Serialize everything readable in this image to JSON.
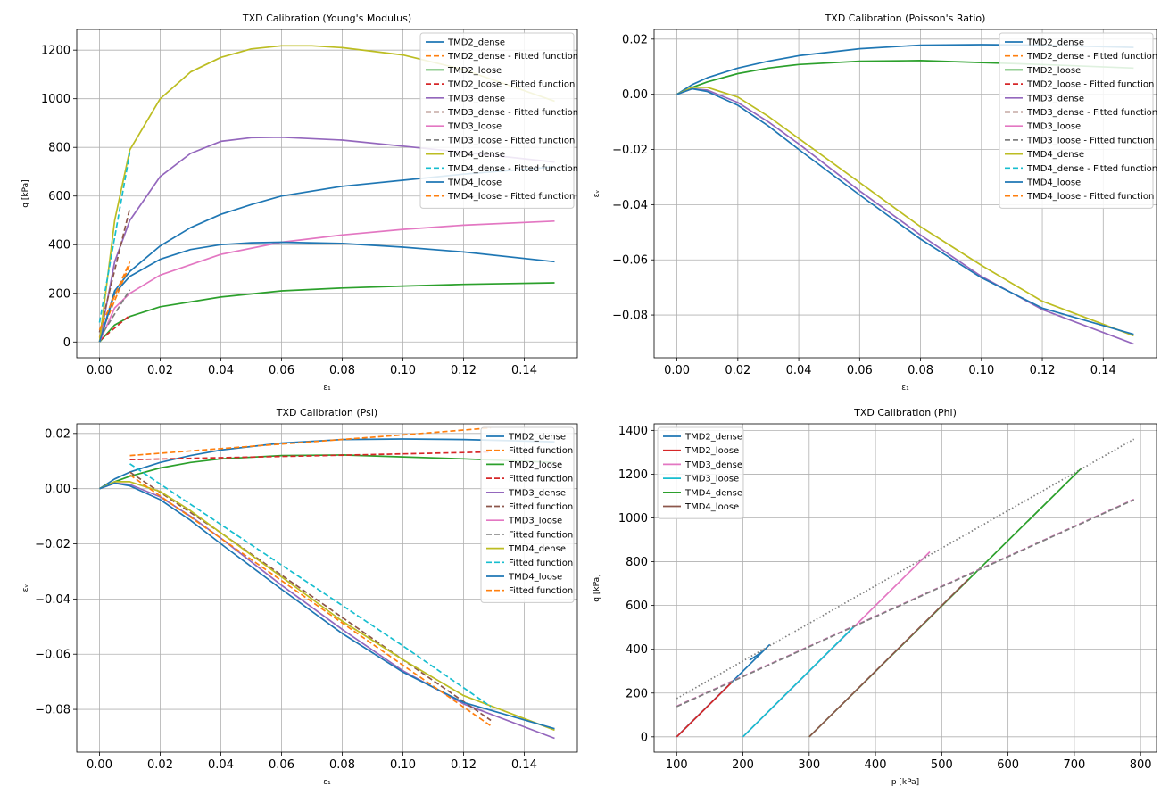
{
  "chart_data": [
    {
      "type": "line",
      "title": "TXD Calibration (Young's Modulus)",
      "xlabel": "ε₁",
      "ylabel": "q [kPa]",
      "xlim": [
        -0.0075,
        0.1575
      ],
      "ylim": [
        -65,
        1285
      ],
      "xticks": [
        0.0,
        0.02,
        0.04,
        0.06,
        0.08,
        0.1,
        0.12,
        0.14
      ],
      "xtick_labels": [
        "0.00",
        "0.02",
        "0.04",
        "0.06",
        "0.08",
        "0.10",
        "0.12",
        "0.14"
      ],
      "yticks": [
        0,
        200,
        400,
        600,
        800,
        1000,
        1200
      ],
      "ytick_labels": [
        "0",
        "200",
        "400",
        "600",
        "800",
        "1000",
        "1200"
      ],
      "grid": true,
      "legend_position": "top-right",
      "series": [
        {
          "name": "TMD2_dense",
          "color": "#1f77b4",
          "dash": "solid",
          "x": [
            0,
            0.005,
            0.01,
            0.02,
            0.03,
            0.04,
            0.05,
            0.06,
            0.08,
            0.1,
            0.12,
            0.15
          ],
          "y": [
            0,
            210,
            290,
            395,
            470,
            525,
            565,
            600,
            640,
            665,
            690,
            720
          ]
        },
        {
          "name": "TMD2_dense - Fitted function",
          "color": "#ff7f0e",
          "dash": "dashed",
          "x": [
            0,
            0.01
          ],
          "y": [
            20,
            320
          ]
        },
        {
          "name": "TMD2_loose",
          "color": "#2ca02c",
          "dash": "solid",
          "x": [
            0,
            0.005,
            0.01,
            0.02,
            0.04,
            0.06,
            0.08,
            0.1,
            0.12,
            0.15
          ],
          "y": [
            0,
            70,
            105,
            145,
            185,
            210,
            222,
            230,
            237,
            243
          ]
        },
        {
          "name": "TMD2_loose - Fitted function",
          "color": "#d62728",
          "dash": "dashed",
          "x": [
            0,
            0.01
          ],
          "y": [
            5,
            110
          ]
        },
        {
          "name": "TMD3_dense",
          "color": "#9467bd",
          "dash": "solid",
          "x": [
            0,
            0.005,
            0.01,
            0.02,
            0.03,
            0.04,
            0.05,
            0.06,
            0.08,
            0.1,
            0.12,
            0.15
          ],
          "y": [
            0,
            330,
            500,
            680,
            775,
            825,
            840,
            842,
            830,
            805,
            780,
            740
          ]
        },
        {
          "name": "TMD3_dense - Fitted function",
          "color": "#8c564b",
          "dash": "dashed",
          "x": [
            0,
            0.01
          ],
          "y": [
            40,
            550
          ]
        },
        {
          "name": "TMD3_loose",
          "color": "#e377c2",
          "dash": "solid",
          "x": [
            0,
            0.005,
            0.01,
            0.02,
            0.04,
            0.06,
            0.08,
            0.1,
            0.12,
            0.15
          ],
          "y": [
            0,
            140,
            200,
            275,
            360,
            410,
            440,
            463,
            480,
            497
          ]
        },
        {
          "name": "TMD3_loose - Fitted function",
          "color": "#7f7f7f",
          "dash": "dashed",
          "x": [
            0,
            0.01
          ],
          "y": [
            15,
            215
          ]
        },
        {
          "name": "TMD4_dense",
          "color": "#bcbd22",
          "dash": "solid",
          "x": [
            0,
            0.005,
            0.01,
            0.02,
            0.03,
            0.04,
            0.05,
            0.06,
            0.07,
            0.08,
            0.1,
            0.12,
            0.15
          ],
          "y": [
            0,
            500,
            790,
            1000,
            1110,
            1170,
            1205,
            1218,
            1218,
            1210,
            1180,
            1120,
            990
          ]
        },
        {
          "name": "TMD4_dense - Fitted function",
          "color": "#17becf",
          "dash": "dashed",
          "x": [
            0,
            0.01
          ],
          "y": [
            80,
            780
          ]
        },
        {
          "name": "TMD4_loose",
          "color": "#1f77b4",
          "dash": "solid",
          "x": [
            0,
            0.005,
            0.01,
            0.02,
            0.03,
            0.04,
            0.05,
            0.06,
            0.08,
            0.1,
            0.12,
            0.15
          ],
          "y": [
            0,
            200,
            270,
            340,
            380,
            400,
            408,
            410,
            405,
            390,
            370,
            330
          ]
        },
        {
          "name": "TMD4_loose - Fitted function",
          "color": "#ff7f0e",
          "dash": "dashed",
          "x": [
            0,
            0.01
          ],
          "y": [
            50,
            330
          ]
        }
      ]
    },
    {
      "type": "line",
      "title": "TXD Calibration (Poisson's Ratio)",
      "xlabel": "ε₁",
      "ylabel": "εᵥ",
      "xlim": [
        -0.0075,
        0.1575
      ],
      "ylim": [
        -0.0955,
        0.0235
      ],
      "xticks": [
        0.0,
        0.02,
        0.04,
        0.06,
        0.08,
        0.1,
        0.12,
        0.14
      ],
      "xtick_labels": [
        "0.00",
        "0.02",
        "0.04",
        "0.06",
        "0.08",
        "0.10",
        "0.12",
        "0.14"
      ],
      "yticks": [
        0.02,
        0.0,
        -0.02,
        -0.04,
        -0.06,
        -0.08
      ],
      "ytick_labels": [
        "0.02",
        "0.00",
        "−0.02",
        "−0.04",
        "−0.06",
        "−0.08"
      ],
      "grid": true,
      "legend_position": "top-right",
      "series": [
        {
          "name": "TMD2_dense",
          "color": "#1f77b4",
          "dash": "solid",
          "x": [
            0,
            0.005,
            0.01,
            0.02,
            0.03,
            0.04,
            0.06,
            0.08,
            0.1,
            0.12,
            0.15
          ],
          "y": [
            0,
            0.0035,
            0.006,
            0.0095,
            0.012,
            0.014,
            0.0165,
            0.0178,
            0.018,
            0.0178,
            0.017
          ]
        },
        {
          "name": "TMD2_dense - Fitted function",
          "color": "#ff7f0e",
          "dash": "dashed",
          "x": [],
          "y": []
        },
        {
          "name": "TMD2_loose",
          "color": "#2ca02c",
          "dash": "solid",
          "x": [
            0,
            0.005,
            0.01,
            0.02,
            0.03,
            0.04,
            0.06,
            0.08,
            0.1,
            0.12,
            0.15
          ],
          "y": [
            0,
            0.0025,
            0.0045,
            0.0075,
            0.0095,
            0.0108,
            0.012,
            0.0122,
            0.0115,
            0.0108,
            0.0095
          ]
        },
        {
          "name": "TMD2_loose - Fitted function",
          "color": "#d62728",
          "dash": "dashed",
          "x": [],
          "y": []
        },
        {
          "name": "TMD3_dense",
          "color": "#9467bd",
          "dash": "solid",
          "x": [
            0,
            0.005,
            0.01,
            0.02,
            0.03,
            0.04,
            0.06,
            0.08,
            0.1,
            0.12,
            0.15
          ],
          "y": [
            0,
            0.002,
            0.0015,
            -0.003,
            -0.01,
            -0.018,
            -0.035,
            -0.051,
            -0.066,
            -0.078,
            -0.0905
          ]
        },
        {
          "name": "TMD3_dense - Fitted function",
          "color": "#8c564b",
          "dash": "dashed",
          "x": [],
          "y": []
        },
        {
          "name": "TMD3_loose",
          "color": "#e377c2",
          "dash": "solid",
          "x": [],
          "y": []
        },
        {
          "name": "TMD3_loose - Fitted function",
          "color": "#7f7f7f",
          "dash": "dashed",
          "x": [],
          "y": []
        },
        {
          "name": "TMD4_dense",
          "color": "#bcbd22",
          "dash": "solid",
          "x": [
            0,
            0.005,
            0.01,
            0.02,
            0.03,
            0.04,
            0.06,
            0.08,
            0.1,
            0.12,
            0.15
          ],
          "y": [
            0,
            0.0025,
            0.0025,
            -0.001,
            -0.008,
            -0.016,
            -0.032,
            -0.048,
            -0.062,
            -0.075,
            -0.0875
          ]
        },
        {
          "name": "TMD4_dense - Fitted function",
          "color": "#17becf",
          "dash": "dashed",
          "x": [],
          "y": []
        },
        {
          "name": "TMD4_loose",
          "color": "#1f77b4",
          "dash": "solid",
          "x": [
            0,
            0.005,
            0.01,
            0.02,
            0.03,
            0.04,
            0.06,
            0.08,
            0.1,
            0.12,
            0.15
          ],
          "y": [
            0,
            0.002,
            0.001,
            -0.004,
            -0.0115,
            -0.02,
            -0.0365,
            -0.0525,
            -0.0665,
            -0.0775,
            -0.087
          ]
        },
        {
          "name": "TMD4_loose - Fitted function",
          "color": "#ff7f0e",
          "dash": "dashed",
          "x": [],
          "y": []
        }
      ]
    },
    {
      "type": "line",
      "title": "TXD Calibration (Psi)",
      "xlabel": "ε₁",
      "ylabel": "εᵥ",
      "xlim": [
        -0.0075,
        0.1575
      ],
      "ylim": [
        -0.0955,
        0.0235
      ],
      "xticks": [
        0.0,
        0.02,
        0.04,
        0.06,
        0.08,
        0.1,
        0.12,
        0.14
      ],
      "xtick_labels": [
        "0.00",
        "0.02",
        "0.04",
        "0.06",
        "0.08",
        "0.10",
        "0.12",
        "0.14"
      ],
      "yticks": [
        0.02,
        0.0,
        -0.02,
        -0.04,
        -0.06,
        -0.08
      ],
      "ytick_labels": [
        "0.02",
        "0.00",
        "−0.02",
        "−0.04",
        "−0.06",
        "−0.08"
      ],
      "grid": true,
      "legend_position": "top-right",
      "series": [
        {
          "name": "TMD2_dense",
          "color": "#1f77b4",
          "dash": "solid",
          "x": [
            0,
            0.005,
            0.01,
            0.02,
            0.03,
            0.04,
            0.06,
            0.08,
            0.1,
            0.12,
            0.15
          ],
          "y": [
            0,
            0.0035,
            0.006,
            0.0095,
            0.012,
            0.014,
            0.0165,
            0.0178,
            0.018,
            0.0178,
            0.017
          ]
        },
        {
          "name": "Fitted function",
          "color": "#ff7f0e",
          "dash": "dashed",
          "x": [
            0.01,
            0.04,
            0.07,
            0.1,
            0.129
          ],
          "y": [
            0.012,
            0.0145,
            0.017,
            0.0195,
            0.022
          ]
        },
        {
          "name": "TMD2_loose",
          "color": "#2ca02c",
          "dash": "solid",
          "x": [
            0,
            0.005,
            0.01,
            0.02,
            0.03,
            0.04,
            0.06,
            0.08,
            0.1,
            0.12,
            0.15
          ],
          "y": [
            0,
            0.0025,
            0.0045,
            0.0075,
            0.0095,
            0.0108,
            0.012,
            0.0122,
            0.0115,
            0.0108,
            0.0095
          ]
        },
        {
          "name": "Fitted function",
          "color": "#d62728",
          "dash": "dashed",
          "x": [
            0.01,
            0.04,
            0.07,
            0.1,
            0.129
          ],
          "y": [
            0.0105,
            0.0112,
            0.0119,
            0.0126,
            0.0133
          ]
        },
        {
          "name": "TMD3_dense",
          "color": "#9467bd",
          "dash": "solid",
          "x": [
            0,
            0.005,
            0.01,
            0.02,
            0.03,
            0.04,
            0.06,
            0.08,
            0.1,
            0.12,
            0.15
          ],
          "y": [
            0,
            0.002,
            0.0015,
            -0.003,
            -0.01,
            -0.018,
            -0.035,
            -0.051,
            -0.066,
            -0.078,
            -0.0905
          ]
        },
        {
          "name": "Fitted function",
          "color": "#8c564b",
          "dash": "dashed",
          "x": [
            0.01,
            0.04,
            0.07,
            0.1,
            0.129
          ],
          "y": [
            0.006,
            -0.016,
            -0.039,
            -0.062,
            -0.084
          ]
        },
        {
          "name": "TMD3_loose",
          "color": "#e377c2",
          "dash": "solid",
          "x": [],
          "y": []
        },
        {
          "name": "Fitted function",
          "color": "#7f7f7f",
          "dash": "dashed",
          "x": [],
          "y": []
        },
        {
          "name": "TMD4_dense",
          "color": "#bcbd22",
          "dash": "solid",
          "x": [
            0,
            0.005,
            0.01,
            0.02,
            0.03,
            0.04,
            0.06,
            0.08,
            0.1,
            0.12,
            0.15
          ],
          "y": [
            0,
            0.0025,
            0.0025,
            -0.001,
            -0.008,
            -0.016,
            -0.032,
            -0.048,
            -0.062,
            -0.075,
            -0.0875
          ]
        },
        {
          "name": "Fitted function",
          "color": "#17becf",
          "dash": "dashed",
          "x": [
            0.01,
            0.04,
            0.07,
            0.1,
            0.129
          ],
          "y": [
            0.009,
            -0.013,
            -0.035,
            -0.057,
            -0.079
          ]
        },
        {
          "name": "TMD4_loose",
          "color": "#1f77b4",
          "dash": "solid",
          "x": [
            0,
            0.005,
            0.01,
            0.02,
            0.03,
            0.04,
            0.06,
            0.08,
            0.1,
            0.12,
            0.15
          ],
          "y": [
            0,
            0.002,
            0.001,
            -0.004,
            -0.0115,
            -0.02,
            -0.0365,
            -0.0525,
            -0.0665,
            -0.0775,
            -0.087
          ]
        },
        {
          "name": "Fitted function",
          "color": "#ff7f0e",
          "dash": "dashed",
          "x": [
            0.01,
            0.04,
            0.07,
            0.1,
            0.129
          ],
          "y": [
            0.005,
            -0.018,
            -0.041,
            -0.064,
            -0.086
          ]
        }
      ]
    },
    {
      "type": "line",
      "title": "TXD Calibration (Phi)",
      "xlabel": "p [kPa]",
      "ylabel": "q [kPa]",
      "xlim": [
        66,
        824
      ],
      "ylim": [
        -70,
        1430
      ],
      "xticks": [
        100,
        200,
        300,
        400,
        500,
        600,
        700,
        800
      ],
      "xtick_labels": [
        "100",
        "200",
        "300",
        "400",
        "500",
        "600",
        "700",
        "800"
      ],
      "yticks": [
        0,
        200,
        400,
        600,
        800,
        1000,
        1200,
        1400
      ],
      "ytick_labels": [
        "0",
        "200",
        "400",
        "600",
        "800",
        "1000",
        "1200",
        "1400"
      ],
      "grid": true,
      "legend_position": "top-left",
      "series": [
        {
          "name": "TMD2_dense",
          "color": "#1f77b4",
          "dash": "solid",
          "x": [
            100,
            240,
            230,
            210
          ],
          "y": [
            0,
            420,
            390,
            350
          ]
        },
        {
          "name": "TMD2_loose",
          "color": "#d62728",
          "dash": "solid",
          "x": [
            100,
            182
          ],
          "y": [
            0,
            245
          ]
        },
        {
          "name": "TMD3_dense",
          "color": "#e377c2",
          "dash": "solid",
          "x": [
            200,
            482
          ],
          "y": [
            0,
            845
          ]
        },
        {
          "name": "TMD3_loose",
          "color": "#17becf",
          "dash": "solid",
          "x": [
            200,
            368
          ],
          "y": [
            0,
            505
          ]
        },
        {
          "name": "TMD4_dense",
          "color": "#2ca02c",
          "dash": "solid",
          "x": [
            300,
            710,
            630
          ],
          "y": [
            0,
            1225,
            985
          ]
        },
        {
          "name": "TMD4_loose",
          "color": "#8c564b",
          "dash": "solid",
          "x": [
            300,
            540
          ],
          "y": [
            0,
            720
          ]
        },
        {
          "name": "",
          "color": "#7f7f7f",
          "dash": "dotted",
          "x": [
            100,
            790
          ],
          "y": [
            175,
            1360
          ]
        },
        {
          "name": "",
          "color": "#e377c2",
          "dash": "dashed",
          "x": [
            100,
            790
          ],
          "y": [
            140,
            1085
          ]
        },
        {
          "name": "",
          "color": "#7f7f7f",
          "dash": "dashed",
          "x": [
            100,
            790
          ],
          "y": [
            138,
            1083
          ]
        }
      ]
    }
  ]
}
